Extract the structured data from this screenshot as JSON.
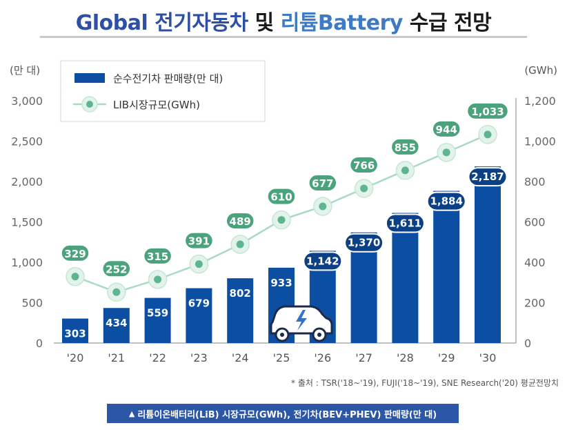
{
  "header": {
    "title_part1": "Global 전기자동차",
    "title_part2": " 및 ",
    "title_part3": "리튬Battery",
    "title_part4": " 수급 전망"
  },
  "chart_data": {
    "type": "bar+line",
    "categories": [
      "'20",
      "'21",
      "'22",
      "'23",
      "'24",
      "'25",
      "'26",
      "'27",
      "'28",
      "'29",
      "'30"
    ],
    "series": [
      {
        "name": "순수전기차 판매량(만 대)",
        "type": "bar",
        "axis": "left",
        "values": [
          303,
          434,
          559,
          679,
          802,
          933,
          1142,
          1370,
          1611,
          1884,
          2187
        ],
        "labels": [
          "303",
          "434",
          "559",
          "679",
          "802",
          "933",
          "1,142",
          "1,370",
          "1,611",
          "1,884",
          "2,187"
        ],
        "color": "#0b4ea2"
      },
      {
        "name": "LIB시장규모(GWh)",
        "type": "line",
        "axis": "right",
        "values": [
          329,
          252,
          315,
          391,
          489,
          610,
          677,
          766,
          855,
          944,
          1033
        ],
        "labels": [
          "329",
          "252",
          "315",
          "391",
          "489",
          "610",
          "677",
          "766",
          "855",
          "944",
          "1,033"
        ],
        "color": "#5fb590"
      }
    ],
    "y_left": {
      "unit": "(만 대)",
      "range": [
        0,
        3000
      ],
      "ticks": [
        0,
        500,
        1000,
        1500,
        2000,
        2500,
        3000
      ],
      "tick_labels": [
        "0",
        "500",
        "1,000",
        "1,500",
        "2,000",
        "2,500",
        "3,000"
      ]
    },
    "y_right": {
      "unit": "(GWh)",
      "range": [
        0,
        1200
      ],
      "ticks": [
        0,
        200,
        400,
        600,
        800,
        1000,
        1200
      ],
      "tick_labels": [
        "0",
        "200",
        "400",
        "600",
        "800",
        "1,000",
        "1,200"
      ]
    },
    "legend_position": "top-left",
    "grid": false
  },
  "footer": {
    "source": "* 출처 : TSR('18~'19), FUJI('18~'19), SNE Research('20) 평균전망치",
    "caption_icon": "▲",
    "caption": "리튬이온배터리(LiB) 시장규모(GWh), 전기차(BEV+PHEV) 판매량(만 대)"
  },
  "colors": {
    "bar": "#0b4ea2",
    "line": "#a9d9c3",
    "marker": "#5fb590",
    "label_bubble": "#4aa37c",
    "title_blue": "#2d4fa6",
    "title_light_blue": "#3f7ac4",
    "caption_bg": "#2c56a8"
  },
  "icons": {
    "car": "electric-car-icon"
  }
}
